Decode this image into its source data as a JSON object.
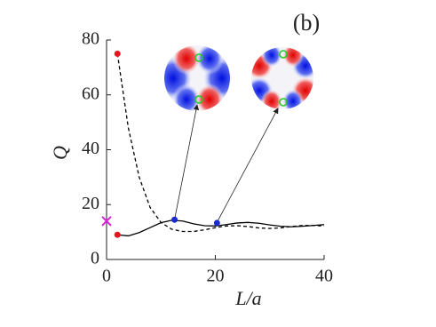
{
  "chart_data": {
    "type": "line",
    "title": "(b)",
    "x_label": "L/a",
    "y_label": "Q",
    "x": [
      2,
      4,
      6,
      8,
      10,
      12,
      14,
      16,
      18,
      20,
      22,
      24,
      26,
      28,
      30,
      32,
      34,
      36,
      38,
      40
    ],
    "series": [
      {
        "color": "#000000",
        "dash": "solid",
        "values": [
          9.0,
          8.6,
          9.8,
          11.6,
          13.4,
          14.3,
          14.0,
          13.0,
          12.3,
          12.2,
          12.7,
          13.3,
          13.5,
          13.2,
          12.6,
          12.1,
          11.9,
          12.1,
          12.4,
          12.7
        ]
      },
      {
        "color": "#000000",
        "dash": "dashed",
        "values": [
          75,
          48,
          30,
          19,
          13.5,
          11,
          10.2,
          10.2,
          10.8,
          11.6,
          12.2,
          12.3,
          12.0,
          11.5,
          11.3,
          11.5,
          12.0,
          12.4,
          12.4,
          12.2
        ]
      }
    ],
    "markers": [
      {
        "x": 2,
        "y": 75,
        "color": "#e8141c",
        "shape": "dot"
      },
      {
        "x": 2,
        "y": 9,
        "color": "#e8141c",
        "shape": "dot"
      },
      {
        "x": 12.5,
        "y": 14.5,
        "color": "#1a2bd6",
        "shape": "dot"
      },
      {
        "x": 20.3,
        "y": 13.3,
        "color": "#1a2bd6",
        "shape": "dot"
      },
      {
        "x": 0,
        "y": 14,
        "color": "#e020e0",
        "shape": "cross"
      }
    ],
    "xlim": [
      0,
      40
    ],
    "xticks": [
      0,
      20,
      40
    ],
    "ylim": [
      0,
      80
    ],
    "yticks": [
      0,
      20,
      40,
      60,
      80
    ]
  }
}
